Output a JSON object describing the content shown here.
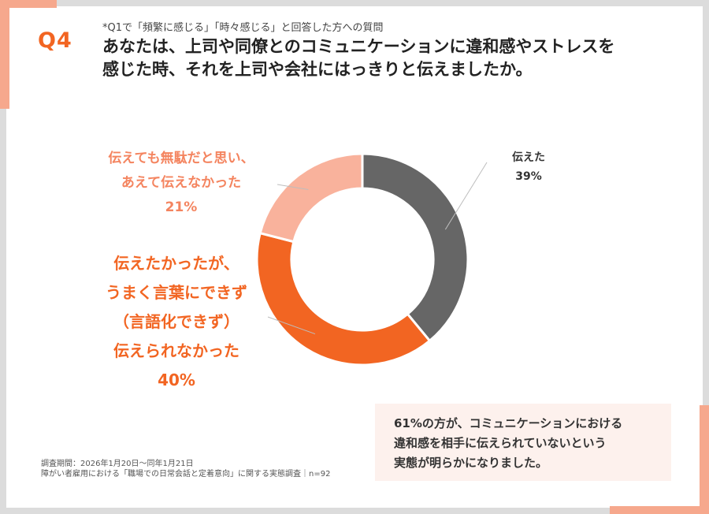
{
  "question": {
    "number": "Q4",
    "note": "*Q1で「頻繁に感じる」「時々感じる」と回答した方への質問",
    "title_line1": "あなたは、上司や同僚とのコミュニケーションに違和感やストレスを",
    "title_line2": "感じた時、それを上司や会社にはっきりと伝えましたか。"
  },
  "chart_data": {
    "type": "pie",
    "variant": "donut",
    "title": "",
    "categories": [
      "伝えた",
      "伝えたかったが、うまく言葉にできず（言語化できず）伝えられなかった",
      "伝えても無駄だと思い、あえて伝えなかった"
    ],
    "values": [
      39,
      40,
      21
    ],
    "unit": "%",
    "colors": [
      "#666666",
      "#f26522",
      "#f9b29c"
    ],
    "labels": {
      "told": {
        "line1": "伝えた",
        "pct": "39%"
      },
      "could_not": {
        "line1": "伝えたかったが、",
        "line2": "うまく言葉にできず",
        "line3": "（言語化できず）",
        "line4": "伝えられなかった",
        "pct": "40%"
      },
      "no_use": {
        "line1": "伝えても無駄だと思い、",
        "line2": "あえて伝えなかった",
        "pct": "21%"
      }
    }
  },
  "conclusion": {
    "line1": "61%の方が、コミュニケーションにおける",
    "line2": "違和感を相手に伝えられていないという",
    "line3": "実態が明らかになりました。"
  },
  "footnote": {
    "period": "調査期間：2026年1月20日〜同年1月21日",
    "survey": "障がい者雇用における「職場での日常会話と定着意向」に関する実態調査｜n=92"
  }
}
